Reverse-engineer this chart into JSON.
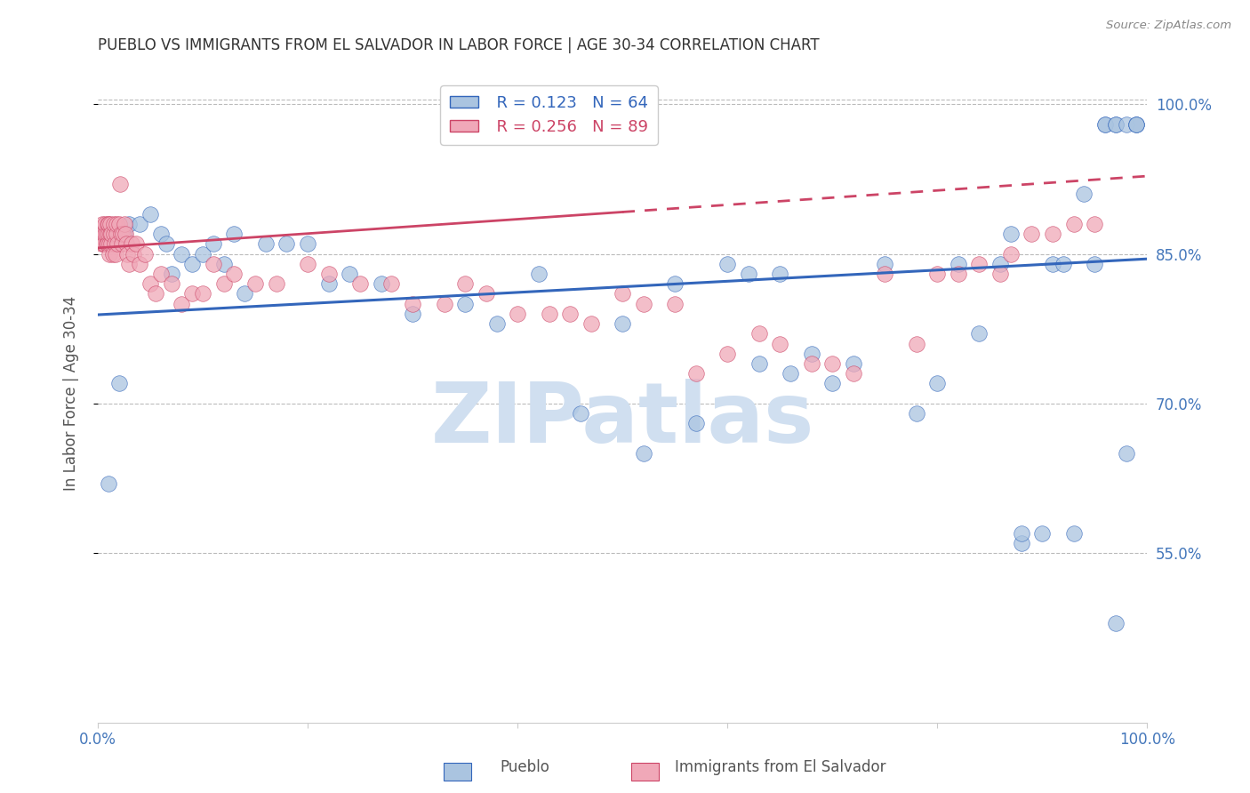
{
  "title": "PUEBLO VS IMMIGRANTS FROM EL SALVADOR IN LABOR FORCE | AGE 30-34 CORRELATION CHART",
  "source": "Source: ZipAtlas.com",
  "ylabel": "In Labor Force | Age 30-34",
  "legend_blue_r": "R = 0.123",
  "legend_blue_n": "N = 64",
  "legend_pink_r": "R = 0.256",
  "legend_pink_n": "N = 89",
  "legend_blue_label": "Pueblo",
  "legend_pink_label": "Immigrants from El Salvador",
  "watermark": "ZIPatlas",
  "xlim": [
    0.0,
    1.0
  ],
  "ylim": [
    0.38,
    1.04
  ],
  "yticks": [
    0.55,
    0.7,
    0.85,
    1.0
  ],
  "ytick_labels": [
    "55.0%",
    "70.0%",
    "85.0%",
    "100.0%"
  ],
  "xticks": [
    0.0,
    0.2,
    0.4,
    0.6,
    0.8,
    1.0
  ],
  "xtick_labels": [
    "0.0%",
    "",
    "",
    "",
    "",
    "100.0%"
  ],
  "blue_scatter_x": [
    0.01,
    0.02,
    0.025,
    0.03,
    0.04,
    0.05,
    0.06,
    0.065,
    0.07,
    0.08,
    0.09,
    0.1,
    0.11,
    0.12,
    0.13,
    0.14,
    0.16,
    0.18,
    0.2,
    0.22,
    0.24,
    0.27,
    0.3,
    0.35,
    0.38,
    0.42,
    0.46,
    0.5,
    0.52,
    0.55,
    0.57,
    0.6,
    0.62,
    0.63,
    0.65,
    0.66,
    0.68,
    0.7,
    0.72,
    0.75,
    0.78,
    0.8,
    0.82,
    0.84,
    0.86,
    0.87,
    0.88,
    0.88,
    0.9,
    0.91,
    0.92,
    0.93,
    0.94,
    0.95,
    0.96,
    0.96,
    0.97,
    0.97,
    0.97,
    0.98,
    0.98,
    0.99,
    0.99,
    0.99
  ],
  "blue_scatter_y": [
    0.62,
    0.72,
    0.87,
    0.88,
    0.88,
    0.89,
    0.87,
    0.86,
    0.83,
    0.85,
    0.84,
    0.85,
    0.86,
    0.84,
    0.87,
    0.81,
    0.86,
    0.86,
    0.86,
    0.82,
    0.83,
    0.82,
    0.79,
    0.8,
    0.78,
    0.83,
    0.69,
    0.78,
    0.65,
    0.82,
    0.68,
    0.84,
    0.83,
    0.74,
    0.83,
    0.73,
    0.75,
    0.72,
    0.74,
    0.84,
    0.69,
    0.72,
    0.84,
    0.77,
    0.84,
    0.87,
    0.56,
    0.57,
    0.57,
    0.84,
    0.84,
    0.57,
    0.91,
    0.84,
    0.98,
    0.98,
    0.48,
    0.98,
    0.98,
    0.65,
    0.98,
    0.98,
    0.98,
    0.98
  ],
  "pink_scatter_x": [
    0.003,
    0.003,
    0.004,
    0.004,
    0.005,
    0.005,
    0.006,
    0.007,
    0.007,
    0.008,
    0.008,
    0.009,
    0.009,
    0.01,
    0.01,
    0.011,
    0.011,
    0.012,
    0.012,
    0.013,
    0.013,
    0.014,
    0.015,
    0.015,
    0.016,
    0.017,
    0.018,
    0.018,
    0.019,
    0.02,
    0.021,
    0.022,
    0.023,
    0.024,
    0.025,
    0.026,
    0.027,
    0.028,
    0.03,
    0.032,
    0.034,
    0.036,
    0.04,
    0.045,
    0.05,
    0.055,
    0.06,
    0.07,
    0.08,
    0.09,
    0.1,
    0.11,
    0.12,
    0.13,
    0.15,
    0.17,
    0.2,
    0.22,
    0.25,
    0.28,
    0.3,
    0.33,
    0.35,
    0.37,
    0.4,
    0.43,
    0.45,
    0.47,
    0.5,
    0.52,
    0.55,
    0.57,
    0.6,
    0.63,
    0.65,
    0.68,
    0.7,
    0.72,
    0.75,
    0.78,
    0.8,
    0.82,
    0.84,
    0.86,
    0.87,
    0.89,
    0.91,
    0.93,
    0.95
  ],
  "pink_scatter_y": [
    0.86,
    0.87,
    0.87,
    0.88,
    0.86,
    0.87,
    0.86,
    0.87,
    0.88,
    0.86,
    0.87,
    0.86,
    0.88,
    0.87,
    0.88,
    0.85,
    0.86,
    0.87,
    0.88,
    0.86,
    0.87,
    0.85,
    0.87,
    0.88,
    0.86,
    0.85,
    0.87,
    0.88,
    0.86,
    0.88,
    0.92,
    0.87,
    0.86,
    0.87,
    0.88,
    0.87,
    0.86,
    0.85,
    0.84,
    0.86,
    0.85,
    0.86,
    0.84,
    0.85,
    0.82,
    0.81,
    0.83,
    0.82,
    0.8,
    0.81,
    0.81,
    0.84,
    0.82,
    0.83,
    0.82,
    0.82,
    0.84,
    0.83,
    0.82,
    0.82,
    0.8,
    0.8,
    0.82,
    0.81,
    0.79,
    0.79,
    0.79,
    0.78,
    0.81,
    0.8,
    0.8,
    0.73,
    0.75,
    0.77,
    0.76,
    0.74,
    0.74,
    0.73,
    0.83,
    0.76,
    0.83,
    0.83,
    0.84,
    0.83,
    0.85,
    0.87,
    0.87,
    0.88,
    0.88
  ],
  "blue_color": "#aac4e0",
  "blue_line_color": "#3366bb",
  "pink_color": "#f0a8b8",
  "pink_line_color": "#cc4466",
  "background_color": "#ffffff",
  "grid_color": "#bbbbbb",
  "title_color": "#333333",
  "axis_label_color": "#555555",
  "tick_label_color": "#4477bb",
  "watermark_color": "#d0dff0",
  "blue_trend": [
    0.0,
    0.789,
    1.0,
    0.845
  ],
  "pink_trend_solid": [
    0.0,
    0.856,
    0.5,
    0.892
  ],
  "pink_trend_dashed": [
    0.5,
    0.892,
    1.0,
    0.928
  ]
}
